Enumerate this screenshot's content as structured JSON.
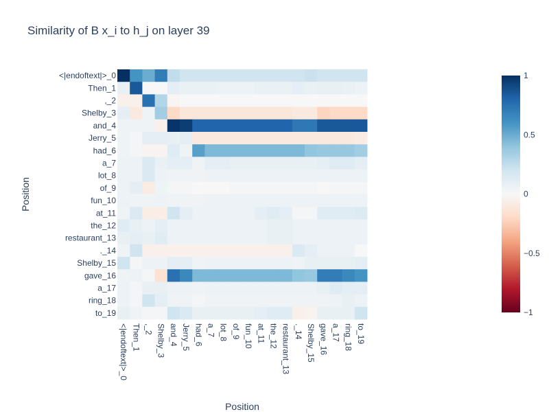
{
  "chart_data": {
    "type": "heatmap",
    "title": "Similarity of B x_i to h_j on layer 39",
    "xlabel": "Position",
    "ylabel": "Position",
    "x_tick_labels": [
      "<|endoftext|>_0",
      "Then_1",
      ",_2",
      "Shelby_3",
      "and_4",
      "Jerry_5",
      "had_6",
      "a_7",
      "lot_8",
      "of_9",
      "fun_10",
      "at_11",
      "the_12",
      "restaurant_13",
      "._14",
      "Shelby_15",
      "gave_16",
      "a_17",
      "ring_18",
      "to_19"
    ],
    "y_tick_labels": [
      "<|endoftext|>_0",
      "Then_1",
      ",_2",
      "Shelby_3",
      "and_4",
      "Jerry_5",
      "had_6",
      "a_7",
      "lot_8",
      "of_9",
      "fun_10",
      "at_11",
      "the_12",
      "restaurant_13",
      "._14",
      "Shelby_15",
      "gave_16",
      "a_17",
      "ring_18",
      "to_19"
    ],
    "zlim": [
      -1,
      1
    ],
    "colorscale": "RdBu",
    "colorbar_ticks": [
      -1,
      -0.5,
      0,
      0.5,
      1
    ],
    "colorbar_tick_labels": [
      "−1",
      "−0.5",
      "0",
      "0.5",
      "1"
    ],
    "z": [
      [
        1.0,
        0.6,
        0.5,
        0.7,
        0.25,
        0.2,
        0.2,
        0.2,
        0.2,
        0.2,
        0.2,
        0.2,
        0.2,
        0.2,
        0.2,
        0.22,
        0.2,
        0.2,
        0.2,
        0.2
      ],
      [
        0.08,
        0.85,
        0.0,
        0.0,
        0.1,
        0.07,
        0.07,
        0.07,
        0.06,
        0.06,
        0.06,
        0.07,
        0.07,
        0.07,
        0.1,
        0.07,
        0.08,
        0.08,
        0.07,
        0.06
      ],
      [
        -0.05,
        -0.05,
        0.75,
        0.3,
        -0.02,
        0.0,
        0.0,
        0.0,
        0.0,
        0.0,
        0.0,
        0.0,
        0.0,
        0.0,
        0.0,
        0.0,
        0.0,
        0.0,
        0.0,
        0.0
      ],
      [
        0.1,
        -0.1,
        0.05,
        0.35,
        -0.2,
        -0.12,
        -0.12,
        -0.12,
        -0.12,
        -0.12,
        -0.12,
        -0.12,
        -0.12,
        -0.12,
        -0.1,
        -0.1,
        -0.22,
        -0.2,
        -0.2,
        -0.2
      ],
      [
        0.05,
        0.05,
        0.05,
        -0.05,
        0.98,
        0.95,
        0.8,
        0.8,
        0.8,
        0.8,
        0.8,
        0.8,
        0.8,
        0.8,
        0.72,
        0.72,
        0.85,
        0.85,
        0.85,
        0.85
      ],
      [
        0.05,
        0.02,
        0.1,
        0.1,
        0.08,
        0.1,
        -0.1,
        -0.1,
        -0.1,
        -0.1,
        -0.1,
        -0.1,
        -0.1,
        -0.1,
        -0.1,
        -0.1,
        -0.1,
        -0.1,
        -0.1,
        -0.08
      ],
      [
        0.05,
        0.02,
        -0.03,
        -0.03,
        0.12,
        0.05,
        0.55,
        0.45,
        0.45,
        0.45,
        0.45,
        0.45,
        0.45,
        0.45,
        0.45,
        0.4,
        0.38,
        0.38,
        0.38,
        0.35
      ],
      [
        0.06,
        0.06,
        0.15,
        0.07,
        0.1,
        0.1,
        0.04,
        0.1,
        0.1,
        0.08,
        0.08,
        0.08,
        0.08,
        0.08,
        0.08,
        0.08,
        0.1,
        0.12,
        0.12,
        0.1
      ],
      [
        0.06,
        0.06,
        0.15,
        0.06,
        0.04,
        0.04,
        0.04,
        0.06,
        0.06,
        0.06,
        0.06,
        0.06,
        0.06,
        0.06,
        0.06,
        0.06,
        0.06,
        0.06,
        0.06,
        0.06
      ],
      [
        0.06,
        0.1,
        -0.08,
        0.05,
        0.02,
        0.02,
        0.0,
        0.0,
        0.0,
        0.02,
        0.02,
        0.02,
        0.02,
        0.02,
        0.02,
        0.02,
        0.0,
        0.02,
        0.02,
        0.02
      ],
      [
        0.06,
        0.04,
        0.05,
        0.06,
        0.04,
        0.04,
        0.04,
        0.06,
        0.06,
        0.06,
        0.06,
        0.06,
        0.06,
        0.06,
        0.06,
        0.06,
        0.06,
        0.06,
        0.06,
        0.06
      ],
      [
        0.05,
        0.15,
        -0.07,
        -0.07,
        0.2,
        0.1,
        0.06,
        0.06,
        0.06,
        0.06,
        0.06,
        0.1,
        0.12,
        0.1,
        0.02,
        0.02,
        0.12,
        0.12,
        0.12,
        0.14
      ],
      [
        0.12,
        0.08,
        0.06,
        0.1,
        0.06,
        0.06,
        0.06,
        0.06,
        0.06,
        0.06,
        0.06,
        0.06,
        0.08,
        0.08,
        0.06,
        0.06,
        0.06,
        0.06,
        0.06,
        0.06
      ],
      [
        0.08,
        0.1,
        0.08,
        0.12,
        0.06,
        0.06,
        0.06,
        0.06,
        0.06,
        0.06,
        0.06,
        0.06,
        0.08,
        0.08,
        0.06,
        0.06,
        0.06,
        0.06,
        0.06,
        0.06
      ],
      [
        0.05,
        0.2,
        -0.05,
        -0.05,
        -0.05,
        -0.05,
        -0.05,
        -0.05,
        -0.05,
        -0.05,
        -0.05,
        -0.05,
        -0.05,
        -0.05,
        0.15,
        0.1,
        0.06,
        0.06,
        0.06,
        0.0
      ],
      [
        0.2,
        0.02,
        0.06,
        0.06,
        0.1,
        0.1,
        0.04,
        0.06,
        0.06,
        0.06,
        0.06,
        0.06,
        0.06,
        0.06,
        0.04,
        0.08,
        0.08,
        0.08,
        0.08,
        0.1
      ],
      [
        0.05,
        0.06,
        0.02,
        -0.15,
        0.75,
        0.65,
        0.45,
        0.45,
        0.45,
        0.45,
        0.45,
        0.45,
        0.45,
        0.45,
        0.4,
        0.38,
        0.7,
        0.7,
        0.65,
        0.6
      ],
      [
        0.06,
        0.02,
        0.08,
        0.08,
        0.06,
        0.06,
        0.04,
        0.06,
        0.06,
        0.06,
        0.06,
        0.06,
        0.06,
        0.06,
        0.06,
        0.06,
        0.08,
        0.12,
        0.1,
        0.1
      ],
      [
        0.06,
        0.02,
        0.2,
        0.1,
        0.04,
        0.04,
        0.02,
        0.04,
        0.04,
        0.04,
        0.04,
        0.04,
        0.04,
        0.04,
        0.04,
        0.04,
        0.04,
        0.06,
        0.08,
        0.06
      ],
      [
        0.08,
        0.04,
        0.02,
        0.02,
        0.2,
        0.15,
        0.08,
        0.08,
        0.08,
        0.08,
        0.08,
        0.1,
        0.12,
        0.12,
        -0.05,
        -0.03,
        0.08,
        0.08,
        0.08,
        0.2
      ]
    ]
  }
}
